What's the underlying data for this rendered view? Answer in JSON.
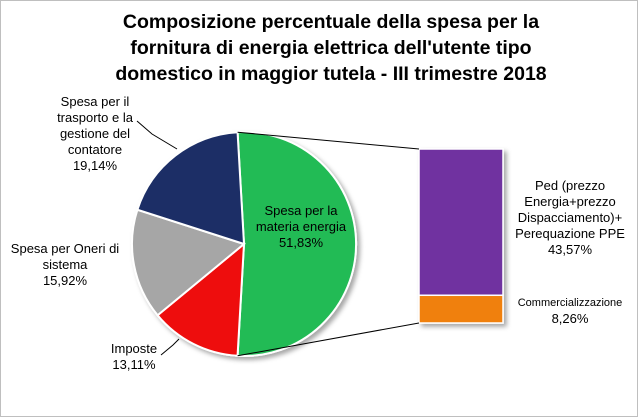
{
  "title_lines": [
    "Composizione percentuale della spesa per la",
    "fornitura di energia elettrica dell'utente tipo",
    "domestico in maggior tutela - III trimestre 2018"
  ],
  "chart_data": {
    "type": "pie",
    "title": "Composizione percentuale della spesa per la fornitura di energia elettrica dell'utente tipo domestico in maggior tutela - III trimestre 2018",
    "slices": [
      {
        "label": "Spesa per la materia energia",
        "value": 51.83,
        "value_label": "51,83%",
        "color": "#22bb55"
      },
      {
        "label": "Imposte",
        "value": 13.11,
        "value_label": "13,11%",
        "color": "#ee1111"
      },
      {
        "label": "Spesa per Oneri di sistema",
        "value": 15.92,
        "value_label": "15,92%",
        "color": "#a6a6a6"
      },
      {
        "label": "Spesa per il trasporto e la gestione del contatore",
        "value": 19.14,
        "value_label": "19,14%",
        "color": "#1c2f66"
      }
    ],
    "breakdown": {
      "of_slice": "Spesa per la materia energia",
      "type": "stacked-bar",
      "segments": [
        {
          "label": "Ped (prezzo Energia+prezzo Dispacciamento)+ Perequazione PPE",
          "value": 43.57,
          "value_label": "43,57%",
          "color": "#7030a0"
        },
        {
          "label": "Commercializzazione",
          "value": 8.26,
          "value_label": "8,26%",
          "color": "#f08010"
        }
      ]
    }
  },
  "labels": {
    "materia": {
      "name": "Spesa per la\nmateria energia",
      "value": "51,83%"
    },
    "imposte": {
      "name": "Imposte",
      "value": "13,11%"
    },
    "oneri": {
      "name": "Spesa per Oneri di\nsistema",
      "value": "15,92%"
    },
    "trasporto": {
      "name": "Spesa per il\ntrasporto e la\ngestione del\ncontatore",
      "value": "19,14%"
    },
    "ped": {
      "name": "Ped (prezzo\nEnergia+prezzo\nDispacciamento)+\nPerequazione PPE",
      "value": "43,57%"
    },
    "comm": {
      "name": "Commercializzazione",
      "value": "8,26%"
    }
  }
}
